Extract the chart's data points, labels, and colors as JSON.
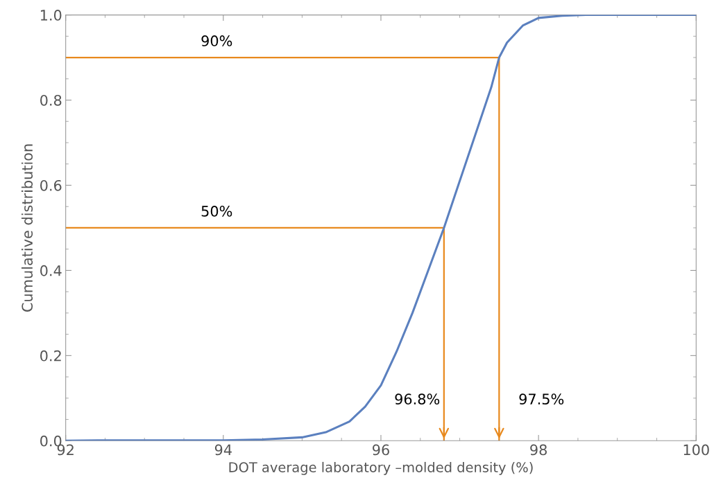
{
  "chart_data": {
    "type": "line",
    "xlabel": "DOT average laboratory –molded density (%)",
    "ylabel": "Cumulative distribution",
    "xlim": [
      92,
      100
    ],
    "xticks": [
      92,
      94,
      96,
      98,
      100
    ],
    "ylim": [
      0,
      1
    ],
    "yticks": [
      {
        "value": 0,
        "label": "0.0"
      },
      0.2,
      0.4,
      0.6,
      0.8,
      {
        "value": 1,
        "label": "1.0"
      }
    ],
    "grid": false,
    "marker": "none",
    "line_style": "solid",
    "series": [
      {
        "color": "#5b80bf",
        "x": [
          92,
          92.4,
          93,
          94,
          94.5,
          95,
          95.3,
          95.6,
          95.8,
          96.0,
          96.2,
          96.4,
          96.6,
          96.8,
          97.0,
          97.2,
          97.4,
          97.5,
          97.6,
          97.8,
          98.0,
          98.3,
          98.6,
          100
        ],
        "values": [
          0,
          0.001,
          0.001,
          0.001,
          0.003,
          0.008,
          0.02,
          0.045,
          0.08,
          0.13,
          0.21,
          0.3,
          0.4,
          0.5,
          0.61,
          0.72,
          0.83,
          0.9,
          0.935,
          0.975,
          0.993,
          0.998,
          1.0,
          1.0
        ]
      },
      {
        "color": "#e8891d",
        "x": [
          92,
          96.8,
          96.8
        ],
        "values": [
          0.5,
          0.5,
          0
        ]
      },
      {
        "color": "#e8891d",
        "x": [
          92,
          97.5,
          97.5
        ],
        "values": [
          0.9,
          0.9,
          0
        ]
      }
    ],
    "annotations": [
      "50%",
      "90%",
      {
        "text": "96.8%",
        "x": 96.8,
        "y": 0
      },
      {
        "text": "97.5%",
        "x": 97.5,
        "y": 0
      }
    ]
  }
}
